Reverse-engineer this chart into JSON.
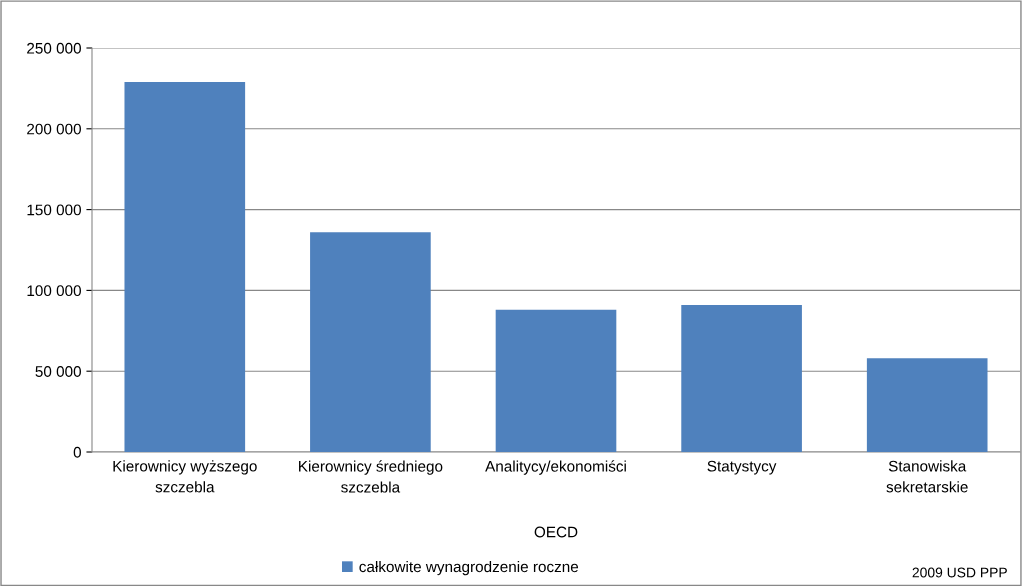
{
  "chart_data": {
    "type": "bar",
    "categories": [
      "Kierownicy wyższego\nszczebla",
      "Kierownicy średniego\nszczebla",
      "Analitycy/ekonomiści",
      "Statystycy",
      "Stanowiska\nsekretarskie"
    ],
    "series": [
      {
        "name": "całkowite wynagrodzenie roczne",
        "color": "#4f81bd",
        "values": [
          229000,
          136000,
          88000,
          91000,
          58000
        ]
      }
    ],
    "xlabel": "OECD",
    "ylim": [
      0,
      250000
    ],
    "yticks": [
      {
        "value": 0,
        "label": "0"
      },
      {
        "value": 50000,
        "label": "50 000"
      },
      {
        "value": 100000,
        "label": "100 000"
      },
      {
        "value": 150000,
        "label": "150 000"
      },
      {
        "value": 200000,
        "label": "200 000"
      },
      {
        "value": 250000,
        "label": "250 000"
      }
    ],
    "grid": "y",
    "legend": "bottom",
    "annotations": [
      "2009 USD PPP"
    ]
  }
}
